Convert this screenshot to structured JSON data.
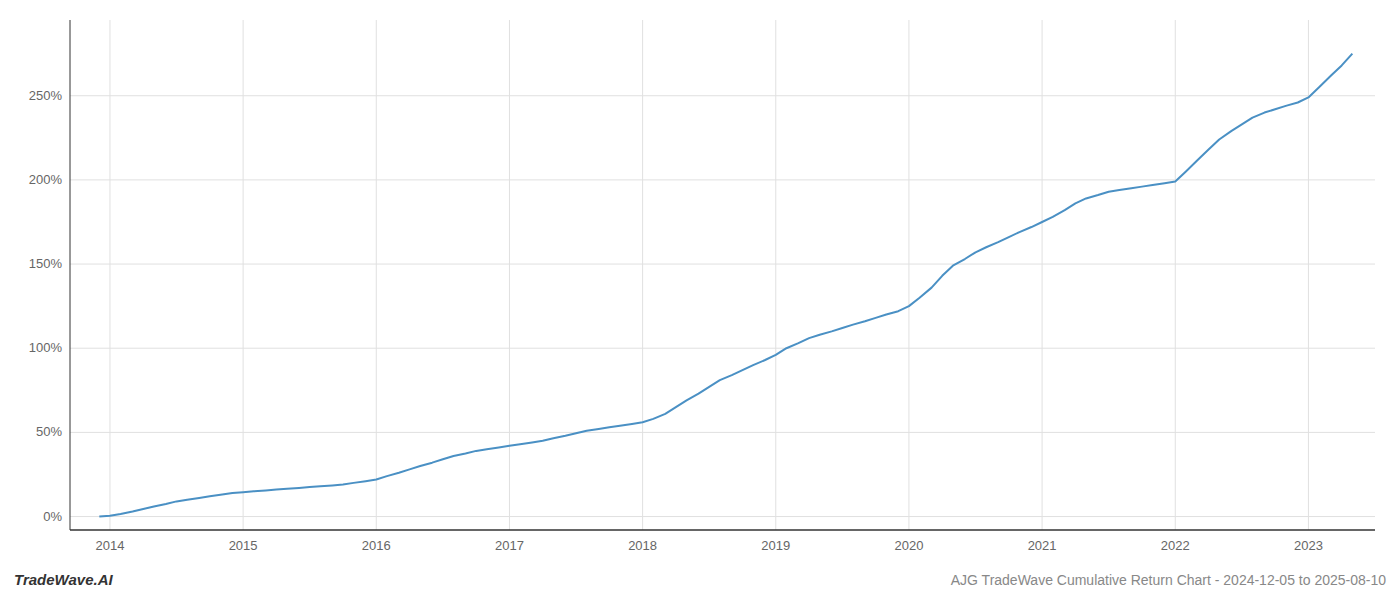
{
  "chart_data": {
    "type": "line",
    "title": "AJG TradeWave Cumulative Return Chart - 2024-12-05 to 2025-08-10",
    "annotations": [
      "TradeWave.AI"
    ],
    "color": "#4a90c4",
    "grid": true,
    "x": [
      2013.92,
      2014.0,
      2014.08,
      2014.17,
      2014.25,
      2014.33,
      2014.42,
      2014.5,
      2014.58,
      2014.67,
      2014.75,
      2014.83,
      2014.92,
      2015.0,
      2015.08,
      2015.17,
      2015.25,
      2015.33,
      2015.42,
      2015.5,
      2015.58,
      2015.67,
      2015.75,
      2015.83,
      2015.92,
      2016.0,
      2016.08,
      2016.17,
      2016.25,
      2016.33,
      2016.42,
      2016.5,
      2016.58,
      2016.67,
      2016.75,
      2016.83,
      2016.92,
      2017.0,
      2017.08,
      2017.17,
      2017.25,
      2017.33,
      2017.42,
      2017.5,
      2017.58,
      2017.67,
      2017.75,
      2017.83,
      2017.92,
      2018.0,
      2018.08,
      2018.17,
      2018.25,
      2018.33,
      2018.42,
      2018.5,
      2018.58,
      2018.67,
      2018.75,
      2018.83,
      2018.92,
      2019.0,
      2019.08,
      2019.17,
      2019.25,
      2019.33,
      2019.42,
      2019.5,
      2019.58,
      2019.67,
      2019.75,
      2019.83,
      2019.92,
      2020.0,
      2020.08,
      2020.17,
      2020.25,
      2020.33,
      2020.42,
      2020.5,
      2020.58,
      2020.67,
      2020.75,
      2020.83,
      2020.92,
      2021.0,
      2021.08,
      2021.17,
      2021.25,
      2021.33,
      2021.42,
      2021.5,
      2021.58,
      2021.67,
      2021.75,
      2021.83,
      2021.92,
      2022.0,
      2022.08,
      2022.17,
      2022.25,
      2022.33,
      2022.42,
      2022.5,
      2022.58,
      2022.67,
      2022.75,
      2022.83,
      2022.92,
      2023.0,
      2023.08,
      2023.17,
      2023.25,
      2023.33
    ],
    "values": [
      0,
      0.5,
      1.5,
      3,
      4.5,
      6,
      7.5,
      9,
      10,
      11,
      12,
      13,
      14,
      14.5,
      15,
      15.5,
      16,
      16.5,
      17,
      17.5,
      18,
      18.5,
      19,
      20,
      21,
      22,
      24,
      26,
      28,
      30,
      32,
      34,
      36,
      37.5,
      39,
      40,
      41,
      42,
      43,
      44,
      45,
      46.5,
      48,
      49.5,
      51,
      52,
      53,
      54,
      55,
      56,
      58,
      61,
      65,
      69,
      73,
      77,
      81,
      84,
      87,
      90,
      93,
      96,
      100,
      103,
      106,
      108,
      110,
      112,
      114,
      116,
      118,
      120,
      122,
      125,
      130,
      136,
      143,
      149,
      153,
      157,
      160,
      163,
      166,
      169,
      172,
      175,
      178,
      182,
      186,
      189,
      191,
      193,
      194,
      195,
      196,
      197,
      198,
      199,
      205,
      212,
      218,
      224,
      229,
      233,
      237,
      240,
      242,
      244,
      246,
      249,
      255,
      262,
      268,
      275
    ],
    "xlim": [
      2013.7,
      2023.5
    ],
    "ylim": [
      -8,
      295
    ],
    "xticks": [
      2014,
      2015,
      2016,
      2017,
      2018,
      2019,
      2020,
      2021,
      2022,
      2023
    ],
    "yticks": [
      {
        "value": 0,
        "label": "0%"
      },
      {
        "value": 50,
        "label": "50%"
      },
      {
        "value": 100,
        "label": "100%"
      },
      {
        "value": 150,
        "label": "150%"
      },
      {
        "value": 200,
        "label": "200%"
      },
      {
        "value": 250,
        "label": "250%"
      }
    ]
  }
}
